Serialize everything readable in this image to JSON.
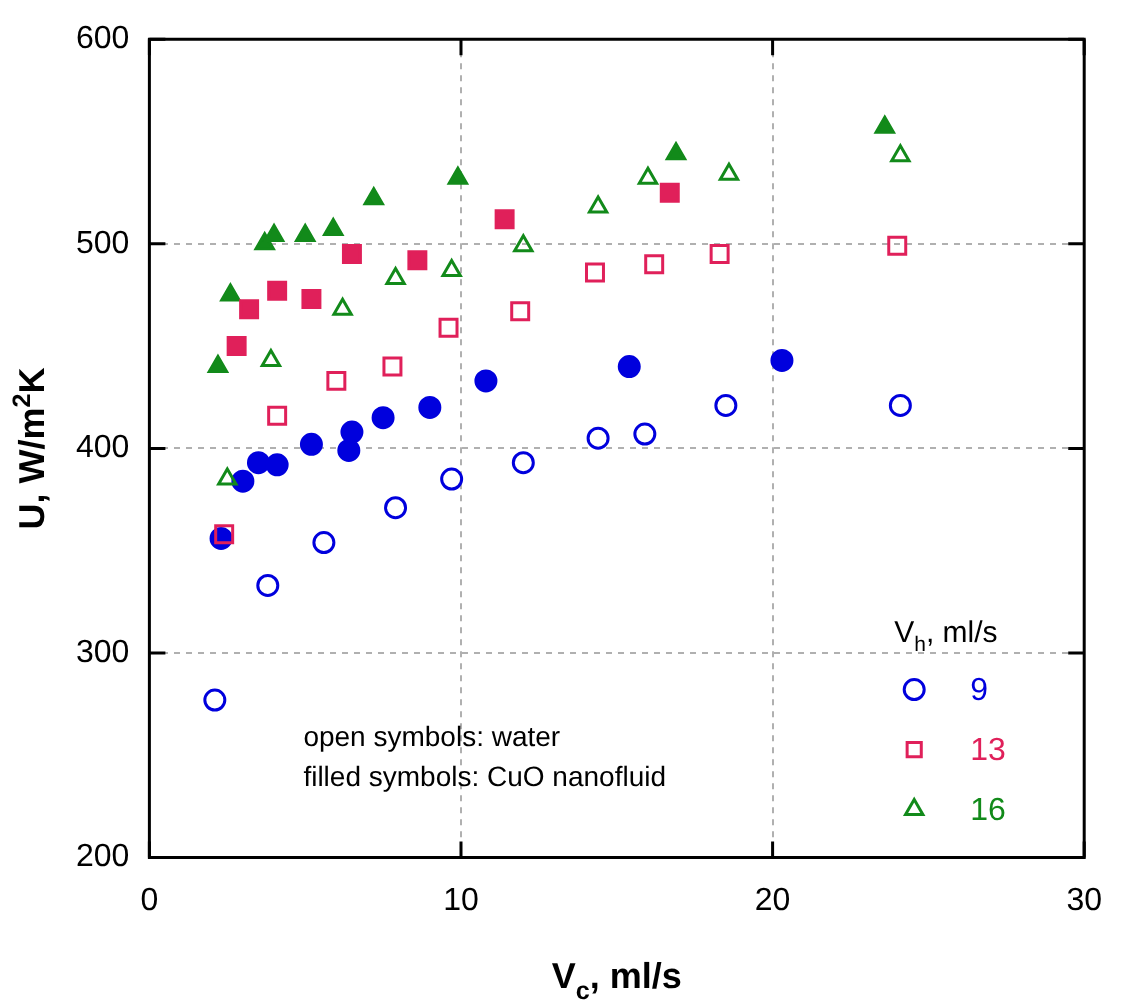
{
  "chart_data": {
    "type": "scatter",
    "xlabel": "V$_{c}$, ml/s",
    "ylabel": "U, W/m$^{2}$K",
    "legend_title": "V$_{h}$, ml/s",
    "xlim": [
      0,
      30
    ],
    "xticks": [
      0,
      10,
      20,
      30
    ],
    "ylim": [
      200,
      600
    ],
    "yticks": [
      200,
      300,
      400,
      500,
      600
    ],
    "grid": true,
    "legend": "bottom right",
    "annotations": [
      "open symbols: water",
      "filled symbols: CuO nanofluid"
    ],
    "series": [
      {
        "name": "9",
        "color": "#0000dd",
        "marker": "circle",
        "x": [
          2.1,
          3.8,
          5.6,
          7.9,
          9.7,
          12.0,
          14.4,
          15.9,
          18.5,
          24.1
        ],
        "values": [
          277,
          333,
          354,
          371,
          385,
          393,
          405,
          407,
          421,
          421
        ]
      },
      {
        "name": "13",
        "color": "#e0205a",
        "marker": "square",
        "x": [
          2.4,
          4.1,
          6.0,
          7.8,
          9.6,
          11.9,
          14.3,
          16.2,
          18.3,
          24.0
        ],
        "values": [
          358,
          416,
          433,
          440,
          459,
          467,
          486,
          490,
          495,
          499
        ]
      },
      {
        "name": "16",
        "color": "#128a1a",
        "marker": "triangle",
        "x": [
          2.5,
          3.9,
          6.2,
          7.9,
          9.7,
          12.0,
          14.4,
          16.0,
          18.6,
          24.1
        ],
        "values": [
          385,
          443,
          468,
          483,
          487,
          499,
          518,
          532,
          534,
          543
        ]
      },
      {
        "color": "#0000dd",
        "marker": "circle",
        "x": [
          2.3,
          3.0,
          3.5,
          4.1,
          5.2,
          6.4,
          6.5,
          7.5,
          9.0,
          10.8,
          15.4,
          20.3
        ],
        "values": [
          356,
          384,
          393,
          392,
          402,
          399,
          408,
          415,
          420,
          433,
          440,
          443
        ]
      },
      {
        "color": "#e0205a",
        "marker": "square",
        "x": [
          2.8,
          3.2,
          4.1,
          5.2,
          6.5,
          8.6,
          11.4,
          16.7
        ],
        "values": [
          450,
          468,
          477,
          473,
          495,
          492,
          512,
          525
        ]
      },
      {
        "color": "#128a1a",
        "marker": "triangle",
        "x": [
          2.2,
          2.6,
          3.7,
          4.0,
          5.0,
          5.9,
          7.2,
          9.9,
          16.9,
          23.6
        ],
        "values": [
          440,
          475,
          500,
          504,
          504,
          507,
          522,
          532,
          544,
          557
        ]
      }
    ]
  }
}
